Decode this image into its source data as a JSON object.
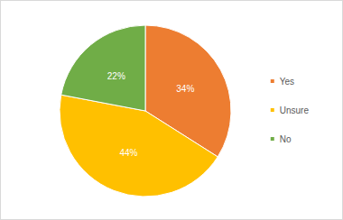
{
  "chart_data": {
    "type": "pie",
    "categories": [
      "Yes",
      "Unsure",
      "No"
    ],
    "values": [
      34,
      44,
      22
    ],
    "value_labels": [
      "34%",
      "44%",
      "22%"
    ],
    "colors": [
      "#ED7D31",
      "#FFC000",
      "#70AD47"
    ],
    "data_labels": true,
    "legend": "right"
  }
}
